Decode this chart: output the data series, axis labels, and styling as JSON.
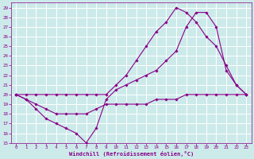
{
  "xlabel": "Windchill (Refroidissement éolien,°C)",
  "background_color": "#cdeaea",
  "grid_color": "#ffffff",
  "line_color": "#880088",
  "xlim": [
    -0.5,
    23.5
  ],
  "ylim": [
    15,
    29.5
  ],
  "xticks": [
    0,
    1,
    2,
    3,
    4,
    5,
    6,
    7,
    8,
    9,
    10,
    11,
    12,
    13,
    14,
    15,
    16,
    17,
    18,
    19,
    20,
    21,
    22,
    23
  ],
  "yticks": [
    15,
    16,
    17,
    18,
    19,
    20,
    21,
    22,
    23,
    24,
    25,
    26,
    27,
    28,
    29
  ],
  "series": [
    [
      20.0,
      19.5,
      18.5,
      17.5,
      17.0,
      16.5,
      16.0,
      15.0,
      16.5,
      19.5,
      20.5,
      21.0,
      21.5,
      22.0,
      22.5,
      23.5,
      24.5,
      27.0,
      28.5,
      28.5,
      27.0,
      22.5,
      21.0,
      20.0
    ],
    [
      20.0,
      19.5,
      19.0,
      18.5,
      18.0,
      18.0,
      18.0,
      18.0,
      18.5,
      19.0,
      19.0,
      19.0,
      19.0,
      19.0,
      19.5,
      19.5,
      19.5,
      20.0,
      20.0,
      20.0,
      20.0,
      20.0,
      20.0,
      20.0
    ],
    [
      20.0,
      20.0,
      20.0,
      20.0,
      20.0,
      20.0,
      20.0,
      20.0,
      20.0,
      20.0,
      21.0,
      22.0,
      23.5,
      25.0,
      26.5,
      27.5,
      29.0,
      28.5,
      27.5,
      26.0,
      25.0,
      23.0,
      21.0,
      20.0
    ]
  ]
}
